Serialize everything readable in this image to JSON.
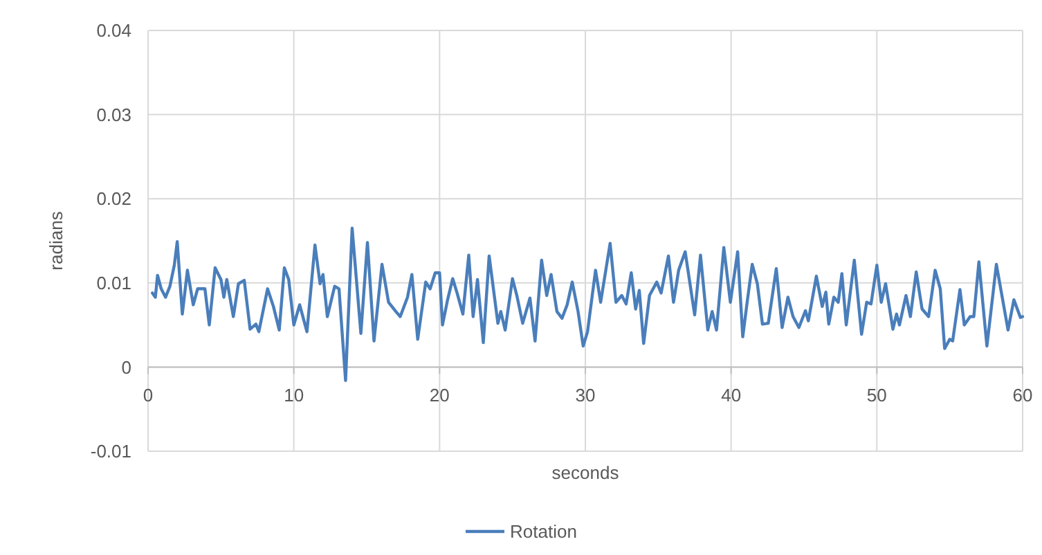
{
  "chart_data": {
    "type": "line",
    "xlabel": "seconds",
    "ylabel": "radians",
    "xlim": [
      0,
      60
    ],
    "xticks": [
      0,
      10,
      20,
      30,
      40,
      50,
      60
    ],
    "ylim": [
      -0.01,
      0.04
    ],
    "yticks": [
      -0.01,
      0,
      0.01,
      0.02,
      0.03,
      0.04
    ],
    "grid": true,
    "legend": "bottom",
    "marker": "none",
    "line_style": "solid",
    "series": [
      {
        "name": "Rotation",
        "color": "#4a7ebb",
        "x": [
          0.3,
          0.5,
          0.65,
          0.9,
          1.2,
          1.5,
          1.8,
          2.0,
          2.35,
          2.7,
          3.1,
          3.4,
          3.9,
          4.2,
          4.6,
          5.0,
          5.2,
          5.4,
          5.85,
          6.2,
          6.6,
          7.0,
          7.4,
          7.6,
          8.2,
          8.6,
          9.0,
          9.35,
          9.65,
          10.0,
          10.4,
          10.9,
          11.45,
          11.8,
          12.0,
          12.3,
          12.8,
          13.1,
          13.55,
          14.0,
          14.6,
          15.05,
          15.5,
          16.05,
          16.5,
          17.0,
          17.3,
          17.8,
          18.1,
          18.5,
          19.05,
          19.35,
          19.7,
          20.0,
          20.2,
          20.55,
          20.9,
          21.2,
          21.6,
          22.0,
          22.3,
          22.6,
          23.0,
          23.4,
          24.0,
          24.2,
          24.5,
          25.0,
          25.3,
          25.7,
          26.2,
          26.55,
          27.0,
          27.35,
          27.65,
          28.05,
          28.4,
          28.75,
          29.1,
          29.5,
          29.85,
          30.15,
          30.7,
          31.05,
          31.7,
          32.1,
          32.5,
          32.8,
          33.15,
          33.45,
          33.7,
          34.0,
          34.4,
          34.9,
          35.2,
          35.7,
          36.05,
          36.4,
          36.85,
          37.5,
          37.9,
          38.4,
          38.7,
          39.0,
          39.5,
          39.95,
          40.45,
          40.8,
          41.1,
          41.45,
          41.8,
          42.15,
          42.55,
          43.1,
          43.5,
          43.9,
          44.25,
          44.65,
          45.1,
          45.3,
          45.85,
          46.25,
          46.5,
          46.7,
          47.05,
          47.35,
          47.6,
          47.9,
          48.45,
          48.95,
          49.3,
          49.6,
          50.0,
          50.3,
          50.6,
          51.1,
          51.35,
          51.55,
          52.0,
          52.3,
          52.7,
          53.1,
          53.55,
          54.0,
          54.35,
          54.65,
          55.0,
          55.2,
          55.7,
          56.0,
          56.4,
          56.65,
          57.0,
          57.55,
          58.2,
          59.0,
          59.4,
          59.85,
          60.0
        ],
        "values": [
          0.0088,
          0.0083,
          0.0109,
          0.0093,
          0.0083,
          0.0096,
          0.0121,
          0.0149,
          0.0063,
          0.0115,
          0.0074,
          0.0093,
          0.0093,
          0.005,
          0.0118,
          0.0104,
          0.0083,
          0.0104,
          0.006,
          0.0099,
          0.0103,
          0.0045,
          0.0051,
          0.0042,
          0.0093,
          0.0072,
          0.0044,
          0.0118,
          0.0104,
          0.005,
          0.0074,
          0.0042,
          0.0145,
          0.0099,
          0.011,
          0.006,
          0.0096,
          0.0093,
          -0.0016,
          0.0165,
          0.004,
          0.0148,
          0.0031,
          0.0122,
          0.0077,
          0.0066,
          0.006,
          0.0083,
          0.011,
          0.0033,
          0.0101,
          0.0093,
          0.0112,
          0.0112,
          0.005,
          0.008,
          0.0105,
          0.0088,
          0.0063,
          0.0133,
          0.006,
          0.0104,
          0.0029,
          0.0132,
          0.0052,
          0.0066,
          0.0044,
          0.0105,
          0.0085,
          0.0052,
          0.0082,
          0.0031,
          0.0127,
          0.0085,
          0.011,
          0.0066,
          0.0058,
          0.0074,
          0.0101,
          0.0066,
          0.0025,
          0.0042,
          0.0115,
          0.0077,
          0.0147,
          0.0077,
          0.0085,
          0.0075,
          0.0112,
          0.0069,
          0.0091,
          0.0028,
          0.0085,
          0.0101,
          0.0088,
          0.0132,
          0.0077,
          0.0115,
          0.0137,
          0.0062,
          0.0133,
          0.0044,
          0.0066,
          0.0044,
          0.0142,
          0.0077,
          0.0137,
          0.0036,
          0.0077,
          0.0122,
          0.0099,
          0.0051,
          0.0052,
          0.0117,
          0.0047,
          0.0083,
          0.006,
          0.0047,
          0.0067,
          0.0055,
          0.0108,
          0.0072,
          0.0089,
          0.0051,
          0.0083,
          0.0077,
          0.0111,
          0.005,
          0.0127,
          0.0039,
          0.0077,
          0.0075,
          0.0121,
          0.0077,
          0.0099,
          0.0045,
          0.0063,
          0.005,
          0.0085,
          0.006,
          0.0113,
          0.0069,
          0.006,
          0.0115,
          0.0093,
          0.0022,
          0.0033,
          0.0031,
          0.0092,
          0.005,
          0.006,
          0.006,
          0.0125,
          0.0025,
          0.0122,
          0.0044,
          0.008,
          0.0059,
          0.006
        ]
      }
    ]
  }
}
